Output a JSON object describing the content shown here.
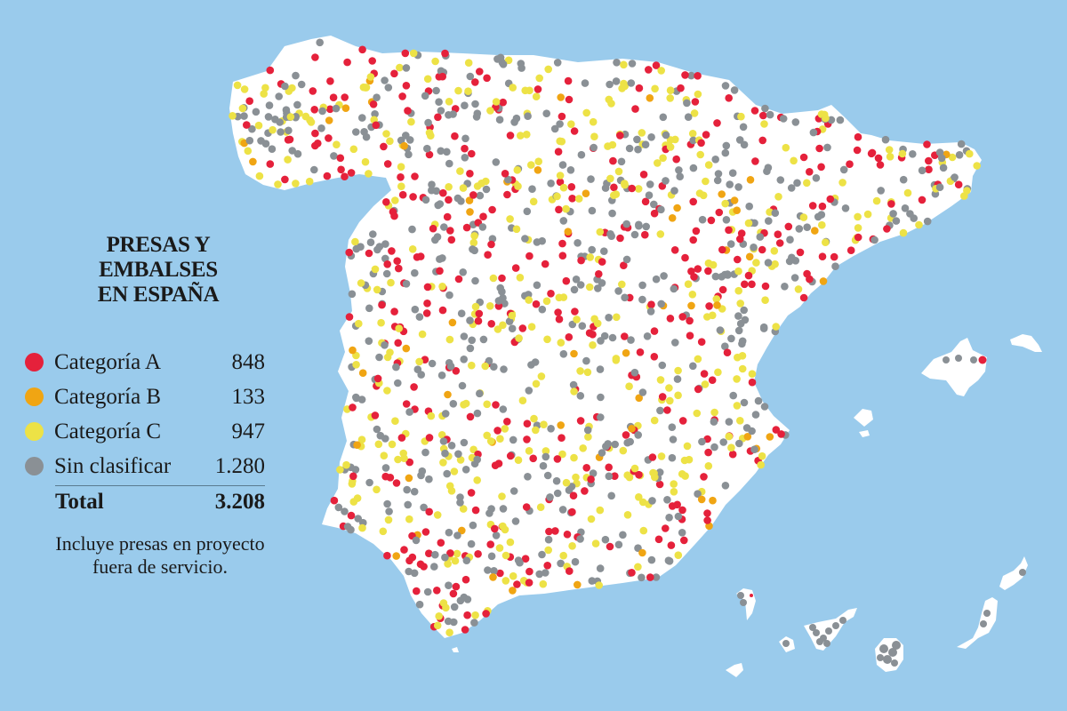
{
  "title": {
    "line1": "PRESAS Y",
    "line2": "EMBALSES",
    "line3": "EN ESPAÑA"
  },
  "legend": {
    "items": [
      {
        "label": "Categoría A",
        "value": "848",
        "color": "#e5213b",
        "icon": "red-dot-icon"
      },
      {
        "label": "Categoría B",
        "value": "133",
        "color": "#f0a513",
        "icon": "orange-dot-icon"
      },
      {
        "label": "Categoría C",
        "value": "947",
        "color": "#ede246",
        "icon": "yellow-dot-icon"
      },
      {
        "label": "Sin clasificar",
        "value": "1.280",
        "color": "#8a9095",
        "icon": "gray-dot-icon"
      }
    ],
    "total_label": "Total",
    "total_value": "3.208",
    "note": "Incluye presas en proyecto fuera de servicio."
  },
  "colors": {
    "sea": "#9acbec",
    "land": "#ffffff",
    "cat_a": "#e5213b",
    "cat_b": "#f0a513",
    "cat_c": "#ede246",
    "unclassified": "#8a9095"
  },
  "map": {
    "region": "España",
    "dot_counts": {
      "cat_a": 848,
      "cat_b": 133,
      "cat_c": 947,
      "unclassified": 1280,
      "total": 3208
    }
  }
}
